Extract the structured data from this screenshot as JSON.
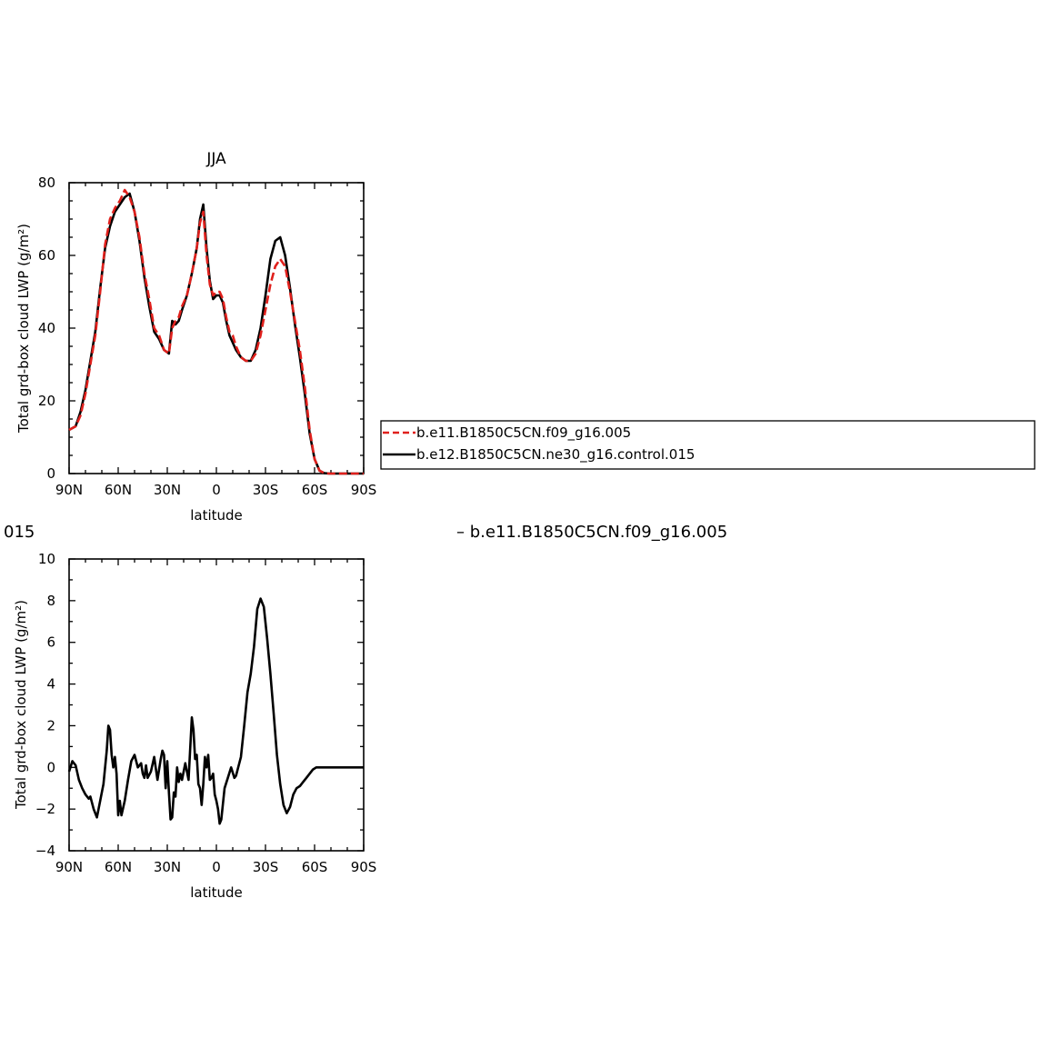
{
  "colors": {
    "control": "#000000",
    "test": "#e0201c"
  },
  "legend": {
    "entries": [
      {
        "label": "b.e11.B1850C5CN.f09_g16.005",
        "style": "dashed",
        "color": "#e0201c"
      },
      {
        "label": "b.e12.B1850C5CN.ne30_g16.control.015",
        "style": "solid",
        "color": "#000000"
      }
    ]
  },
  "lower_title": {
    "left": "015",
    "right": "– b.e11.B1850C5CN.f09_g16.005"
  },
  "chart_data": [
    {
      "type": "line",
      "title": "JJA",
      "xlabel": "latitude",
      "ylabel": "Total grd-box cloud LWP (g/m²)",
      "xlim": [
        90,
        -90
      ],
      "ylim": [
        0,
        80
      ],
      "xticks": [
        90,
        60,
        30,
        0,
        -30,
        -60,
        -90
      ],
      "xtick_labels": [
        "90N",
        "60N",
        "30N",
        "0",
        "30S",
        "60S",
        "90S"
      ],
      "yticks": [
        0,
        20,
        40,
        60,
        80
      ],
      "ytick_labels": [
        "0",
        "20",
        "40",
        "60",
        "80"
      ],
      "grid": false,
      "legend_position": "right",
      "series": [
        {
          "name": "b.e11.B1850C5CN.f09_g16.005",
          "style": "dashed",
          "color": "#e0201c",
          "x": [
            90,
            86,
            83,
            80,
            77,
            74,
            71,
            68,
            65,
            62,
            59,
            56,
            53,
            50,
            47,
            44,
            41,
            38,
            35,
            32,
            29,
            27,
            25,
            23,
            21,
            18,
            15,
            12,
            10,
            8,
            6,
            4,
            2,
            0,
            -2,
            -4,
            -6,
            -8,
            -10,
            -12,
            -15,
            -18,
            -21,
            -24,
            -27,
            -30,
            -33,
            -36,
            -39,
            -42,
            -45,
            -48,
            -51,
            -54,
            -57,
            -60,
            -63,
            -66,
            -69,
            -72,
            -75,
            -78,
            -81,
            -84,
            -87,
            -90
          ],
          "y": [
            12,
            13,
            16,
            22,
            30,
            38,
            50,
            63,
            70,
            73,
            75,
            78,
            76,
            72,
            65,
            55,
            48,
            40,
            38,
            34,
            33,
            40,
            42,
            43,
            46,
            49,
            55,
            62,
            69,
            72,
            60,
            52,
            49,
            50,
            50,
            48,
            43,
            39,
            38,
            35,
            32,
            31,
            31,
            33,
            38,
            45,
            52,
            57,
            59,
            57,
            50,
            42,
            34,
            24,
            12,
            4,
            0.8,
            0.1,
            0,
            0,
            0,
            0,
            0,
            0,
            0,
            0
          ]
        },
        {
          "name": "b.e12.B1850C5CN.ne30_g16.control.015",
          "style": "solid",
          "color": "#000000",
          "x": [
            90,
            86,
            83,
            80,
            77,
            74,
            71,
            68,
            65,
            62,
            59,
            56,
            53,
            50,
            47,
            44,
            41,
            38,
            35,
            32,
            29,
            27,
            25,
            23,
            21,
            18,
            15,
            12,
            10,
            8,
            6,
            4,
            2,
            0,
            -2,
            -4,
            -6,
            -8,
            -10,
            -12,
            -15,
            -18,
            -21,
            -24,
            -27,
            -30,
            -33,
            -36,
            -39,
            -42,
            -45,
            -48,
            -51,
            -54,
            -57,
            -60,
            -63,
            -66,
            -69,
            -72,
            -75,
            -78,
            -81,
            -84,
            -87,
            -90
          ],
          "y": [
            12,
            13,
            17,
            23,
            31,
            39,
            51,
            62,
            68,
            72,
            74,
            76,
            77,
            72,
            64,
            54,
            46,
            39,
            37,
            34,
            33,
            42,
            41,
            42,
            45,
            49,
            55,
            62,
            70,
            74,
            62,
            53,
            48,
            49,
            49,
            47,
            42,
            38,
            36,
            34,
            32,
            31,
            31,
            34,
            40,
            49,
            59,
            64,
            65,
            60,
            51,
            41,
            32,
            22,
            11,
            4,
            0.8,
            0.1,
            0,
            0,
            0,
            0,
            0,
            0,
            0,
            0
          ]
        }
      ]
    },
    {
      "type": "line",
      "title": "",
      "xlabel": "latitude",
      "ylabel": "Total grd-box cloud LWP (g/m²)",
      "xlim": [
        90,
        -90
      ],
      "ylim": [
        -4,
        10
      ],
      "xticks": [
        90,
        60,
        30,
        0,
        -30,
        -60,
        -90
      ],
      "xtick_labels": [
        "90N",
        "60N",
        "30N",
        "0",
        "30S",
        "60S",
        "90S"
      ],
      "yticks": [
        -4,
        -2,
        0,
        2,
        4,
        6,
        8,
        10
      ],
      "ytick_labels": [
        "−4",
        "−2",
        "0",
        "2",
        "4",
        "6",
        "8",
        "10"
      ],
      "grid": false,
      "series": [
        {
          "name": "",
          "style": "solid",
          "color": "#000000",
          "x": [
            90,
            88,
            86,
            84,
            82,
            80,
            78,
            77,
            75,
            73,
            71,
            69,
            67,
            66,
            65,
            64,
            63,
            62,
            61,
            60,
            59,
            58,
            56,
            54,
            52,
            50,
            48,
            46,
            45,
            44,
            43,
            42,
            40,
            38,
            36,
            34,
            33,
            32,
            31,
            30,
            29,
            28,
            27,
            26,
            25,
            24,
            23,
            22,
            21,
            20,
            19,
            17,
            15,
            14,
            13,
            12,
            11,
            10,
            9,
            8,
            7,
            6,
            5,
            4,
            3,
            2,
            1,
            0,
            -1,
            -2,
            -3,
            -5,
            -7,
            -9,
            -11,
            -12,
            -13,
            -15,
            -17,
            -19,
            -21,
            -23,
            -25,
            -27,
            -29,
            -31,
            -33,
            -35,
            -37,
            -39,
            -41,
            -43,
            -45,
            -47,
            -49,
            -51,
            -53,
            -55,
            -57,
            -59,
            -61,
            -63,
            -66,
            -69,
            -72,
            -75,
            -78,
            -81,
            -84,
            -87,
            -90
          ],
          "y": [
            -0.2,
            0.3,
            0.1,
            -0.6,
            -1.0,
            -1.3,
            -1.5,
            -1.4,
            -2.0,
            -2.4,
            -1.6,
            -0.8,
            0.8,
            2.0,
            1.8,
            0.6,
            0.0,
            0.5,
            -0.3,
            -2.3,
            -1.6,
            -2.3,
            -1.6,
            -0.6,
            0.3,
            0.6,
            0.0,
            0.2,
            -0.3,
            -0.5,
            0.1,
            -0.5,
            -0.2,
            0.5,
            -0.6,
            0.4,
            0.8,
            0.6,
            -1.0,
            0.3,
            -1.2,
            -2.5,
            -2.4,
            -1.2,
            -1.4,
            0.0,
            -0.7,
            -0.3,
            -0.6,
            -0.2,
            0.2,
            -0.6,
            2.4,
            1.8,
            0.4,
            0.6,
            -0.8,
            -1.0,
            -1.8,
            -0.8,
            0.5,
            0.0,
            0.6,
            -0.6,
            -0.5,
            -0.3,
            -1.3,
            -1.6,
            -2.0,
            -2.7,
            -2.5,
            -1.0,
            -0.5,
            0.0,
            -0.5,
            -0.4,
            -0.1,
            0.5,
            2.0,
            3.6,
            4.5,
            5.8,
            7.6,
            8.1,
            7.7,
            6.2,
            4.5,
            2.6,
            0.6,
            -0.8,
            -1.8,
            -2.2,
            -1.9,
            -1.3,
            -1.0,
            -0.9,
            -0.7,
            -0.5,
            -0.3,
            -0.1,
            0.0,
            0.0,
            0.0,
            0.0,
            0.0,
            0.0,
            0.0,
            0.0,
            0.0,
            0.0,
            0.0
          ]
        }
      ]
    }
  ]
}
